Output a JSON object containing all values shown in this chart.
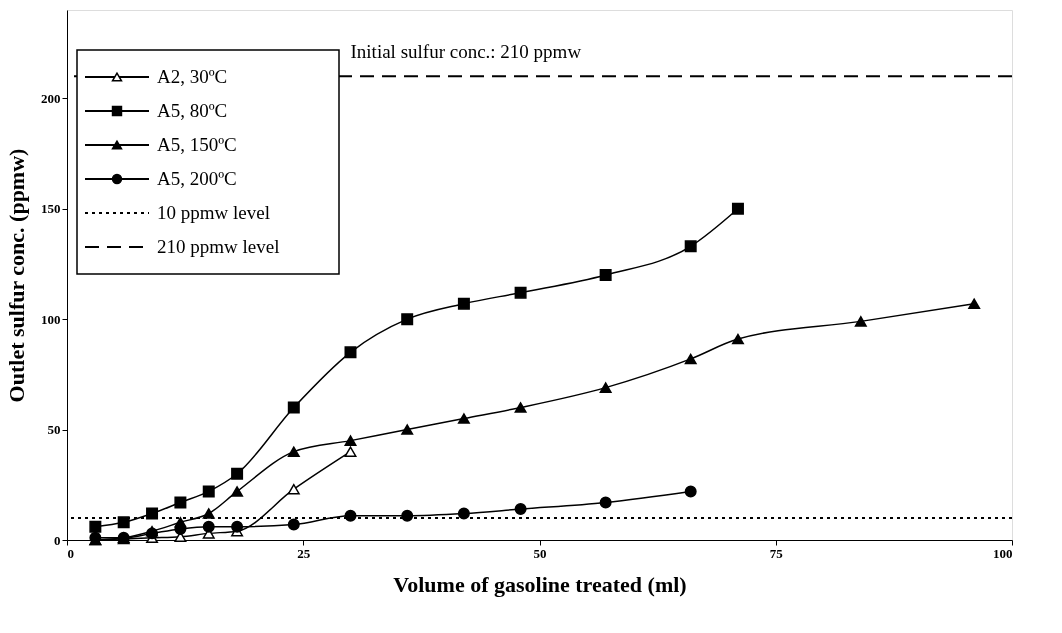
{
  "chart_data": {
    "type": "line",
    "xlabel": "Volume of gasoline treated (ml)",
    "ylabel": "Outlet sulfur conc. (ppmw)",
    "xlim": [
      0,
      100
    ],
    "xticks": [
      0,
      25,
      50,
      75,
      100
    ],
    "ylim": [
      0,
      240
    ],
    "yticks": [
      0,
      50,
      100,
      150,
      200
    ],
    "grid": false,
    "legend": "top left",
    "line_style": "solid",
    "series": [
      {
        "name": "A2, 30ºC",
        "color": "#000000",
        "marker": "triangle-open",
        "x": [
          3,
          6,
          9,
          12,
          15,
          18,
          24,
          30
        ],
        "values": [
          0,
          0.5,
          1,
          1.5,
          3,
          4,
          23,
          40
        ]
      },
      {
        "name": "A5, 80ºC",
        "color": "#000000",
        "marker": "square",
        "x": [
          3,
          6,
          9,
          12,
          15,
          18,
          24,
          30,
          36,
          42,
          48,
          57,
          66,
          71
        ],
        "values": [
          6,
          8,
          12,
          17,
          22,
          30,
          60,
          85,
          100,
          107,
          112,
          120,
          133,
          150
        ]
      },
      {
        "name": "A5, 150ºC",
        "color": "#000000",
        "marker": "triangle",
        "x": [
          3,
          6,
          9,
          12,
          15,
          18,
          24,
          30,
          36,
          42,
          48,
          57,
          66,
          71,
          84,
          96
        ],
        "values": [
          0,
          1,
          4,
          8,
          12,
          22,
          40,
          45,
          50,
          55,
          60,
          69,
          82,
          91,
          99,
          107
        ]
      },
      {
        "name": "A5, 200ºC",
        "color": "#000000",
        "marker": "circle",
        "x": [
          3,
          6,
          9,
          12,
          15,
          18,
          24,
          30,
          36,
          42,
          48,
          57,
          66
        ],
        "values": [
          1,
          1,
          3,
          5,
          6,
          6,
          7,
          11,
          11,
          12,
          14,
          17,
          22
        ]
      }
    ],
    "ref_lines": [
      {
        "axis": "y",
        "value": 10,
        "label": "10 ppmw level",
        "color": "#000000",
        "line_style": "dotted"
      },
      {
        "axis": "y",
        "value": 210,
        "label": "210 ppmw level",
        "color": "#000000",
        "line_style": "dashed"
      }
    ],
    "annotations": [
      {
        "text": "Initial sulfur conc.: 210 ppmw",
        "x": 30,
        "y": 210
      }
    ]
  }
}
